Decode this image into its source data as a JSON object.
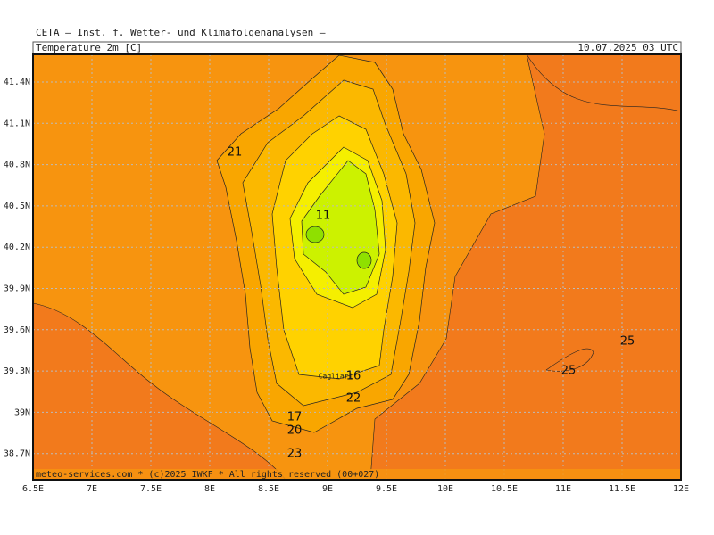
{
  "header": {
    "title": "CETA — Inst. f. Wetter- und Klimafolgenanalysen —",
    "variable": "Temperature_2m_[C]",
    "datetime": "10.07.2025 03 UTC"
  },
  "map": {
    "xticks": [
      "6.5E",
      "7E",
      "7.5E",
      "8E",
      "8.5E",
      "9E",
      "9.5E",
      "10E",
      "10.5E",
      "11E",
      "11.5E",
      "12E"
    ],
    "yticks": [
      "41.4N",
      "41.1N",
      "40.8N",
      "40.5N",
      "40.2N",
      "39.9N",
      "39.6N",
      "39.3N",
      "39N",
      "38.7N"
    ],
    "contour_labels": [
      "21",
      "11",
      "16",
      "22",
      "17",
      "20",
      "23",
      "25",
      "25"
    ],
    "city": "Cagliari"
  },
  "footer": "meteo-services.com * (c)2025 IWKF * All rights reserved (00+027)"
}
